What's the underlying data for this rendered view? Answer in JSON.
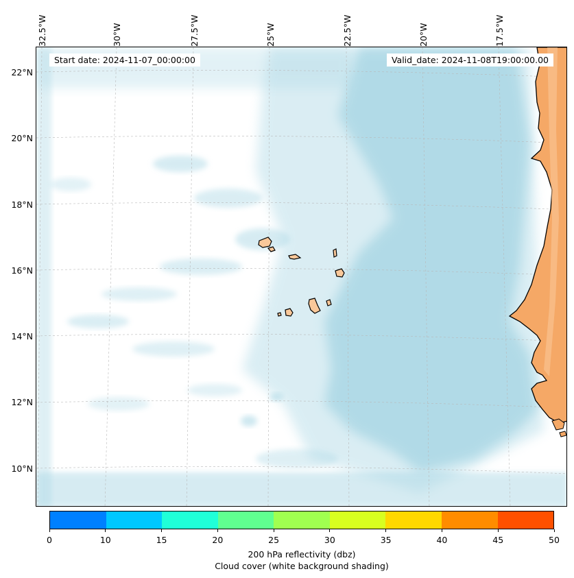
{
  "map": {
    "start_date": "Start date: 2024-11-07_00:00:00",
    "valid_date": "Valid_date: 2024-11-08T19:00:00.00",
    "lon_labels": [
      "32.5°W",
      "30°W",
      "27.5°W",
      "25°W",
      "22.5°W",
      "20°W",
      "17.5°W"
    ],
    "lat_labels": [
      "22°N",
      "20°N",
      "18°N",
      "16°N",
      "14°N",
      "12°N",
      "10°N"
    ],
    "extent": {
      "lon_min": -32.6,
      "lon_max": -16.0,
      "lat_min": 8.9,
      "lat_max": 22.7
    },
    "features": [
      "Cabo Verde islands",
      "West African coastline (Senegal, Mauritania)"
    ],
    "colors": {
      "land": "#f5a866",
      "land_light": "#f9c89a",
      "cloud": "#aed9e6",
      "coast": "#000000"
    }
  },
  "colorbar": {
    "title_line1": "200 hPa reflectivity (dbz)",
    "title_line2": "Cloud cover (white background shading)",
    "ticks": [
      "0",
      "10",
      "15",
      "20",
      "25",
      "30",
      "35",
      "40",
      "45",
      "50"
    ],
    "colors": [
      "#0080ff",
      "#00c8ff",
      "#20ffd8",
      "#60ff90",
      "#a0ff50",
      "#d8ff20",
      "#ffd800",
      "#ff8c00",
      "#ff5000"
    ]
  }
}
